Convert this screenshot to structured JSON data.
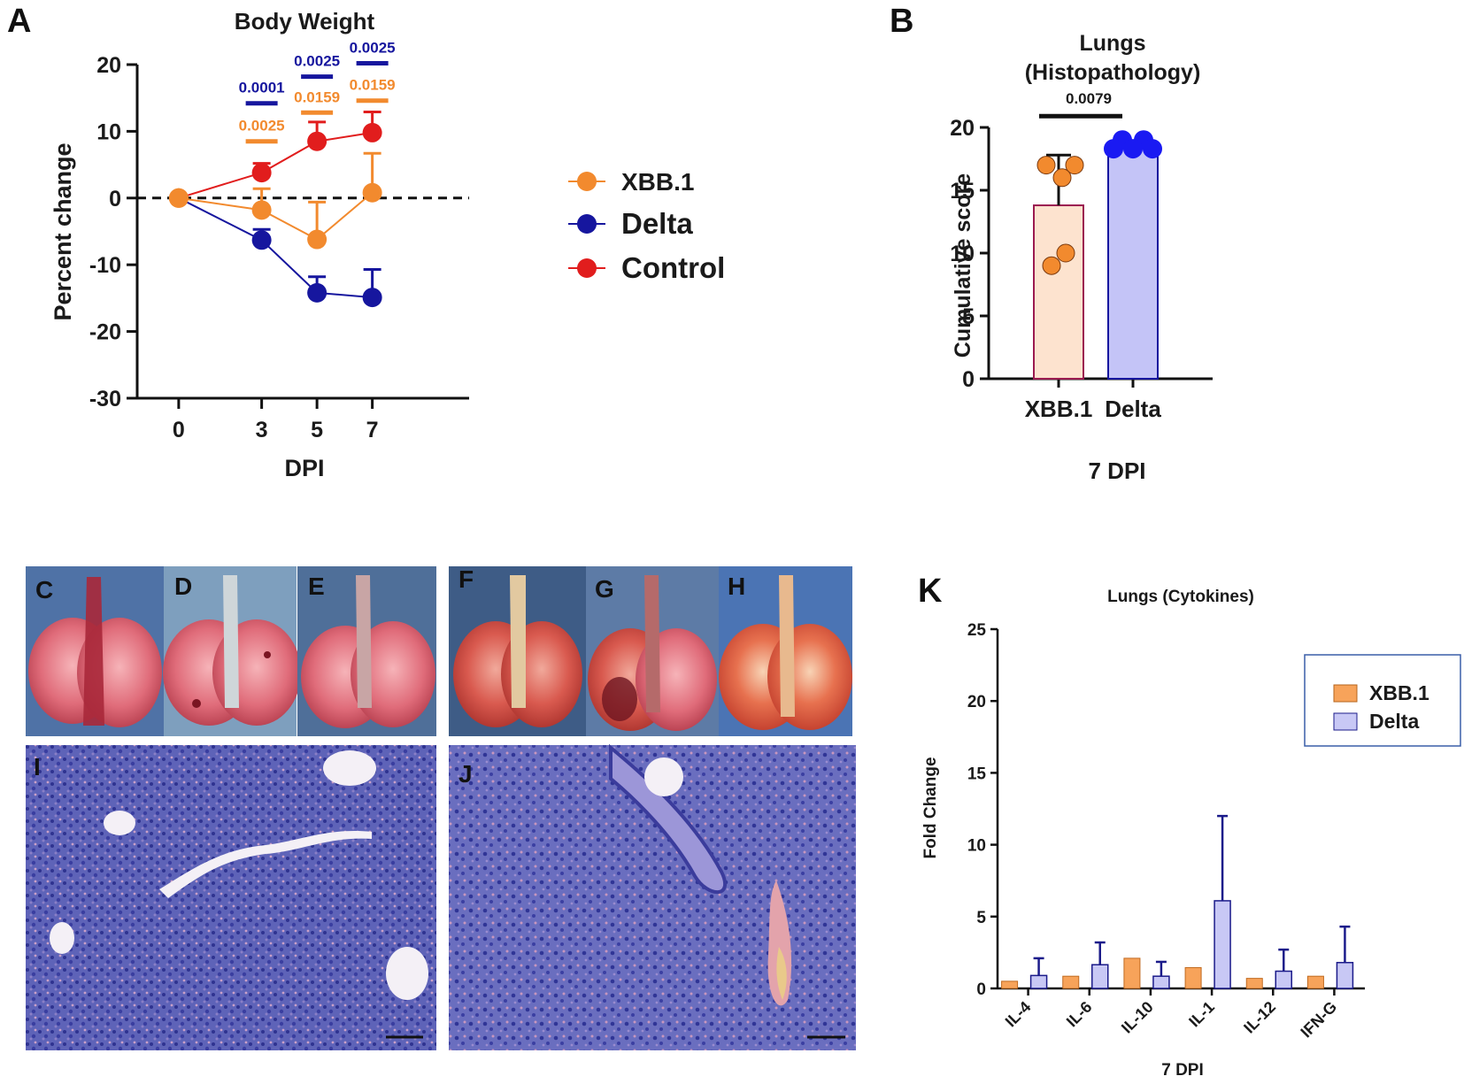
{
  "colors": {
    "xbb": "#f28a2e",
    "delta": "#16169e",
    "control": "#e11d1d",
    "bar_xbb_fill": "#fde3cf",
    "bar_xbb_edge": "#9b1b50",
    "bar_delta_fill": "#c4c4f7",
    "bar_delta_dot": "#1a1af2",
    "k_xbb_fill": "#f7a35a",
    "k_delta_fill": "#c8c8f5",
    "k_delta_edge": "#1b1b8a",
    "legend_box": "#3a5fa8"
  },
  "panel_labels": {
    "a": "A",
    "b": "B",
    "c": "C",
    "d": "D",
    "e": "E",
    "f": "F",
    "g": "G",
    "h": "H",
    "i": "I",
    "j": "J",
    "k": "K"
  },
  "chart_data": [
    {
      "id": "A",
      "type": "line",
      "title": "Body Weight",
      "xlabel": "DPI",
      "ylabel": "Percent change",
      "x": [
        0,
        3,
        5,
        7
      ],
      "xlim": [
        -1.5,
        10.5
      ],
      "ylim": [
        -30,
        20
      ],
      "yticks": [
        -30,
        -20,
        -10,
        0,
        10,
        20
      ],
      "reference_line": 0,
      "series": [
        {
          "name": "XBB.1",
          "color_key": "xbb",
          "values": [
            0,
            -1.8,
            -6.2,
            0.8
          ],
          "error": [
            0,
            3.2,
            5.6,
            5.9
          ]
        },
        {
          "name": "Delta",
          "color_key": "delta",
          "values": [
            0,
            -6.3,
            -14.2,
            -14.9
          ],
          "error": [
            0,
            1.6,
            2.4,
            4.2
          ]
        },
        {
          "name": "Control",
          "color_key": "control",
          "values": [
            0,
            3.8,
            8.5,
            9.8
          ],
          "error": [
            0,
            1.4,
            2.9,
            3.1
          ]
        }
      ],
      "annotations": [
        {
          "x": 3,
          "color_key": "delta",
          "label": "0.0001",
          "y": 14.2
        },
        {
          "x": 3,
          "color_key": "xbb",
          "label": "0.0025",
          "y": 8.5
        },
        {
          "x": 5,
          "color_key": "delta",
          "label": "0.0025",
          "y": 18.2
        },
        {
          "x": 5,
          "color_key": "xbb",
          "label": "0.0159",
          "y": 12.8
        },
        {
          "x": 7,
          "color_key": "delta",
          "label": "0.0025",
          "y": 20.2
        },
        {
          "x": 7,
          "color_key": "xbb",
          "label": "0.0159",
          "y": 14.6
        }
      ],
      "legend": [
        "XBB.1",
        "Delta",
        "Control"
      ]
    },
    {
      "id": "B",
      "type": "bar",
      "title": "Lungs",
      "subtitle": "(Histopathology)",
      "categories": [
        "XBB.1",
        "Delta"
      ],
      "values": [
        13.8,
        18.3
      ],
      "error": [
        4.0,
        0
      ],
      "points": [
        [
          17,
          17,
          16,
          10,
          9
        ],
        [
          19,
          19,
          18.3,
          18.3,
          18.3
        ]
      ],
      "xlabel": "7 DPI",
      "ylabel": "Cumulative score",
      "ylim": [
        0,
        20
      ],
      "yticks": [
        0,
        5,
        10,
        15,
        20
      ],
      "significance": {
        "label": "0.0079",
        "y": 20.9
      }
    },
    {
      "id": "K",
      "type": "bar",
      "title": "Lungs (Cytokines)",
      "categories": [
        "IL-4",
        "IL-6",
        "IL-10",
        "IL-1",
        "IL-12",
        "IFN-G"
      ],
      "series": [
        {
          "name": "XBB.1",
          "values": [
            0.5,
            0.85,
            2.1,
            1.45,
            0.7,
            0.85
          ],
          "error": [
            0,
            0,
            0,
            0,
            0,
            0
          ]
        },
        {
          "name": "Delta",
          "values": [
            0.9,
            1.65,
            0.85,
            6.1,
            1.2,
            1.8
          ],
          "error": [
            1.2,
            1.55,
            1.0,
            5.9,
            1.5,
            2.5
          ]
        }
      ],
      "xlabel": "7 DPI",
      "ylabel": "Fold Change",
      "ylim": [
        0,
        25
      ],
      "yticks": [
        0,
        5,
        10,
        15,
        20,
        25
      ],
      "legend": [
        "XBB.1",
        "Delta"
      ]
    }
  ]
}
